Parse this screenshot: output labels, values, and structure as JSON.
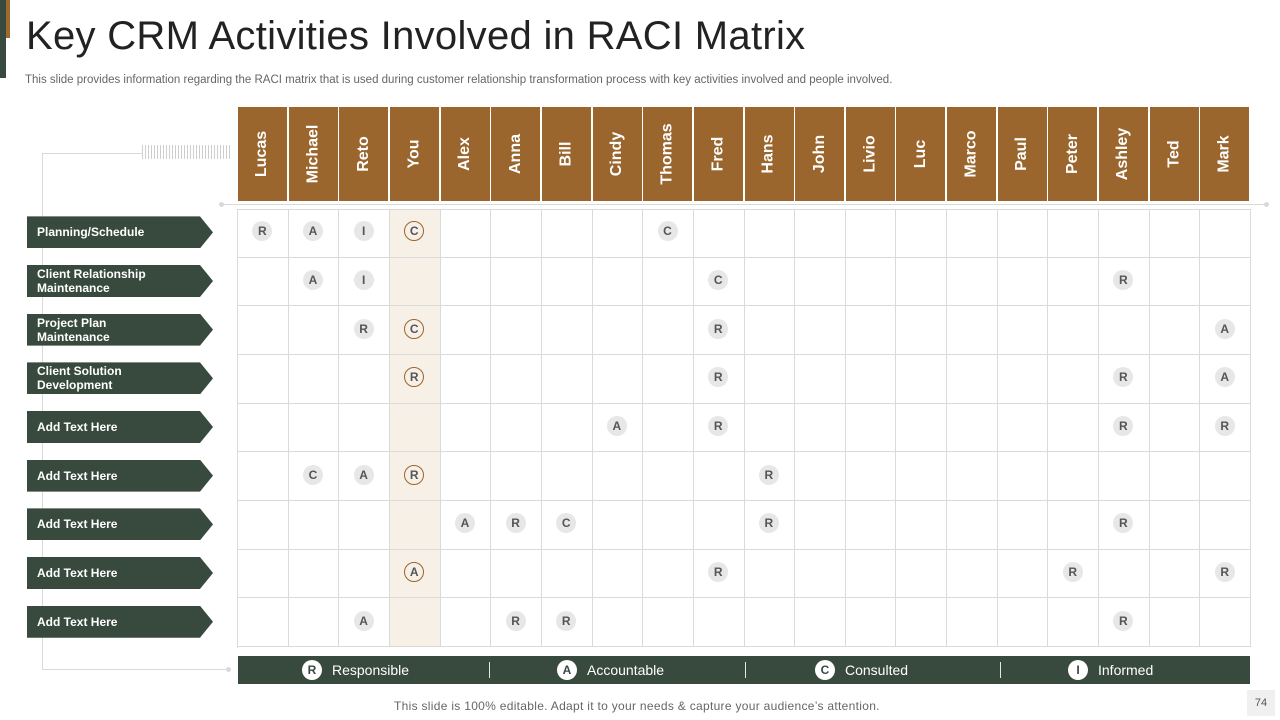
{
  "title": "Key CRM Activities Involved in RACI Matrix",
  "subtitle": "This slide provides information regarding the RACI matrix that is used during customer relationship transformation process with key activities involved  and people involved.",
  "people": [
    "Lucas",
    "Michael",
    "Reto",
    "You",
    "Alex",
    "Anna",
    "Bill",
    "Cindy",
    "Thomas",
    "Fred",
    "Hans",
    "John",
    "Livio",
    "Luc",
    "Marco",
    "Paul",
    "Peter",
    "Ashley",
    "Ted",
    "Mark"
  ],
  "highlight_person": "You",
  "activities": [
    {
      "label": "Planning/Schedule",
      "cells": [
        "R",
        "A",
        "I",
        "C",
        "",
        "",
        "",
        "",
        "C",
        "",
        "",
        "",
        "",
        "",
        "",
        "",
        "",
        "",
        "",
        ""
      ]
    },
    {
      "label": "Client Relationship Maintenance",
      "cells": [
        "",
        "A",
        "I",
        "",
        "",
        "",
        "",
        "",
        "",
        "C",
        "",
        "",
        "",
        "",
        "",
        "",
        "",
        "R",
        "",
        ""
      ]
    },
    {
      "label": "Project Plan Maintenance",
      "cells": [
        "",
        "",
        "R",
        "C",
        "",
        "",
        "",
        "",
        "",
        "R",
        "",
        "",
        "",
        "",
        "",
        "",
        "",
        "",
        "",
        "A"
      ]
    },
    {
      "label": "Client  Solution Development",
      "cells": [
        "",
        "",
        "",
        "R",
        "",
        "",
        "",
        "",
        "",
        "R",
        "",
        "",
        "",
        "",
        "",
        "",
        "",
        "R",
        "",
        "A"
      ]
    },
    {
      "label": "Add  Text Here",
      "cells": [
        "",
        "",
        "",
        "",
        "",
        "",
        "",
        "A",
        "",
        "R",
        "",
        "",
        "",
        "",
        "",
        "",
        "",
        "R",
        "",
        "R"
      ]
    },
    {
      "label": "Add  Text Here",
      "cells": [
        "",
        "C",
        "A",
        "R",
        "",
        "",
        "",
        "",
        "",
        "",
        "R",
        "",
        "",
        "",
        "",
        "",
        "",
        "",
        "",
        ""
      ]
    },
    {
      "label": "Add  Text Here",
      "cells": [
        "",
        "",
        "",
        "",
        "A",
        "R",
        "C",
        "",
        "",
        "",
        "R",
        "",
        "",
        "",
        "",
        "",
        "",
        "R",
        "",
        ""
      ]
    },
    {
      "label": "Add  Text Here",
      "cells": [
        "",
        "",
        "",
        "A",
        "",
        "",
        "",
        "",
        "",
        "R",
        "",
        "",
        "",
        "",
        "",
        "",
        "R",
        "",
        "",
        "R"
      ]
    },
    {
      "label": "Add  Text Here",
      "cells": [
        "",
        "",
        "A",
        "",
        "",
        "R",
        "R",
        "",
        "",
        "",
        "",
        "",
        "",
        "",
        "",
        "",
        "",
        "R",
        "",
        ""
      ]
    }
  ],
  "legend": [
    {
      "letter": "R",
      "label": "Responsible"
    },
    {
      "letter": "A",
      "label": "Accountable"
    },
    {
      "letter": "C",
      "label": "Consulted"
    },
    {
      "letter": "I",
      "label": "Informed"
    }
  ],
  "footer_note": "This slide is 100% editable. Adapt it to your needs & capture your audience’s attention.",
  "page_number": "74",
  "colors": {
    "header_brown": "#9a662e",
    "label_green": "#384a3e",
    "badge_gray": "#e7e7e7",
    "highlight_column": "#f7f0e7"
  }
}
